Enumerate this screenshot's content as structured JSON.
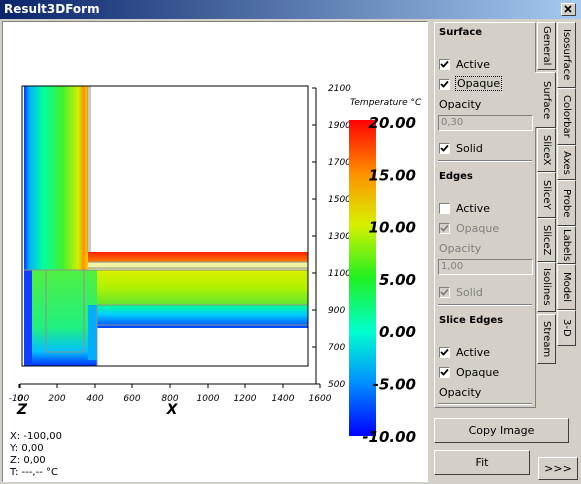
{
  "window": {
    "title": "Result3DForm"
  },
  "plot": {
    "right_axis_ticks": [
      "2100",
      "1900",
      "1700",
      "1500",
      "1300",
      "1100",
      "900",
      "700",
      "500"
    ],
    "bottom_axis_ticks": [
      "-100",
      "0",
      "200",
      "400",
      "600",
      "800",
      "1000",
      "1200",
      "1400",
      "1600"
    ],
    "axis_labels": [
      "Z",
      "X"
    ],
    "colorbar": {
      "title": "Temperature °C",
      "ticks": [
        "20.00",
        "15.00",
        "10.00",
        "5.00",
        "0.00",
        "-5.00",
        "-10.00"
      ]
    }
  },
  "info": [
    "X: -100,00",
    "Y: 0,00",
    "Z: 0,00",
    "T: ---,-- °C"
  ],
  "panel": {
    "surface": {
      "title": "Surface",
      "active": {
        "label": "Active",
        "checked": true
      },
      "opaque": {
        "label": "Opaque",
        "checked": true
      },
      "opacity": {
        "label": "Opacity",
        "value": "0,30"
      },
      "solid": {
        "label": "Solid",
        "checked": true
      }
    },
    "edges": {
      "title": "Edges",
      "active": {
        "label": "Active",
        "checked": false
      },
      "opaque": {
        "label": "Opaque",
        "checked": true
      },
      "opacity": {
        "label": "Opacity",
        "value": "1,00"
      },
      "solid": {
        "label": "Solid",
        "checked": true
      }
    },
    "slice_edges": {
      "title": "Slice Edges",
      "active": {
        "label": "Active",
        "checked": true
      },
      "opaque": {
        "label": "Opaque",
        "checked": true
      },
      "opacity": {
        "label": "Opacity"
      }
    }
  },
  "tabs": [
    [
      "General",
      "Surface",
      "SliceX",
      "SliceY",
      "SliceZ",
      "Isolines",
      "Stream"
    ],
    [
      "Isosurface",
      "Colorbar",
      "Axes",
      "Probe",
      "Labels",
      "Model",
      "3-D"
    ]
  ],
  "buttons": {
    "copy_image": "Copy Image",
    "fit": "Fit",
    "more": ">>>"
  }
}
